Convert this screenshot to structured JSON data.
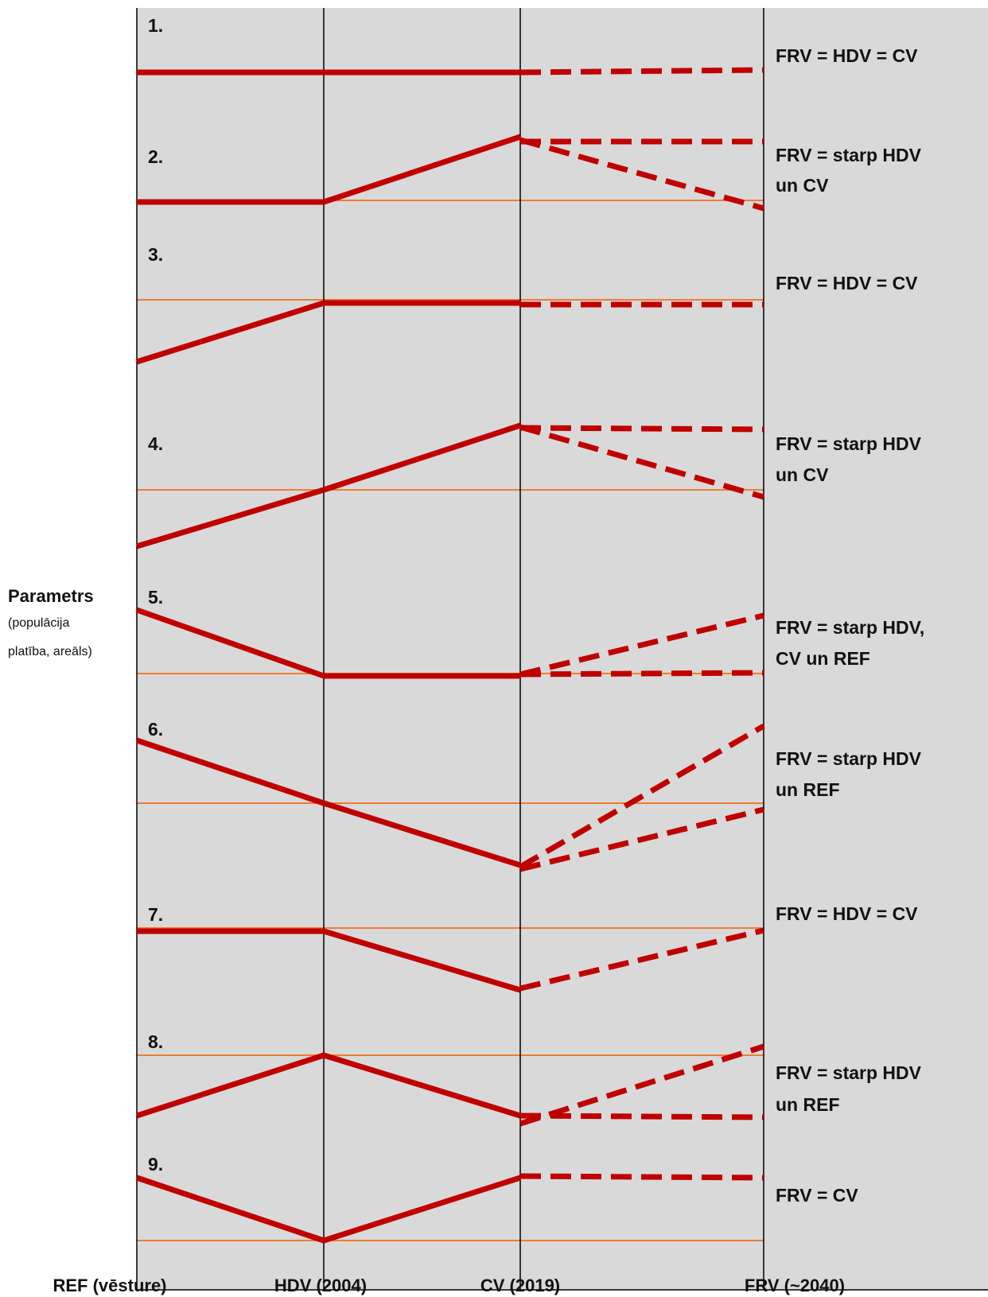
{
  "y_axis": {
    "title": "Parametrs",
    "subtitle_line1": "(populācija",
    "subtitle_line2": "platība, areāls)"
  },
  "x_axis": {
    "labels": [
      "REF (vēsture)",
      "HDV (2004)",
      "CV (2019)",
      "FRV (~2040)"
    ]
  },
  "scenarios": [
    {
      "number": "1.",
      "desc_lines": [
        "FRV = HDV = CV"
      ]
    },
    {
      "number": "2.",
      "desc_lines": [
        "FRV = starp HDV",
        "un CV"
      ]
    },
    {
      "number": "3.",
      "desc_lines": [
        "FRV = HDV = CV"
      ]
    },
    {
      "number": "4.",
      "desc_lines": [
        "FRV = starp HDV",
        "un CV"
      ]
    },
    {
      "number": "5.",
      "desc_lines": [
        "FRV = starp HDV,",
        "CV un REF"
      ]
    },
    {
      "number": "6.",
      "desc_lines": [
        "FRV = starp HDV",
        "un REF"
      ]
    },
    {
      "number": "7.",
      "desc_lines": [
        "FRV = HDV = CV"
      ]
    },
    {
      "number": "8.",
      "desc_lines": [
        "FRV = starp HDV",
        "un REF"
      ]
    },
    {
      "number": "9.",
      "desc_lines": [
        "FRV = CV"
      ]
    }
  ],
  "colors": {
    "panel_background": "#d9d9d9",
    "trend_line": "#c00000",
    "reference_line": "#ed7d31",
    "divider": "#000000"
  }
}
